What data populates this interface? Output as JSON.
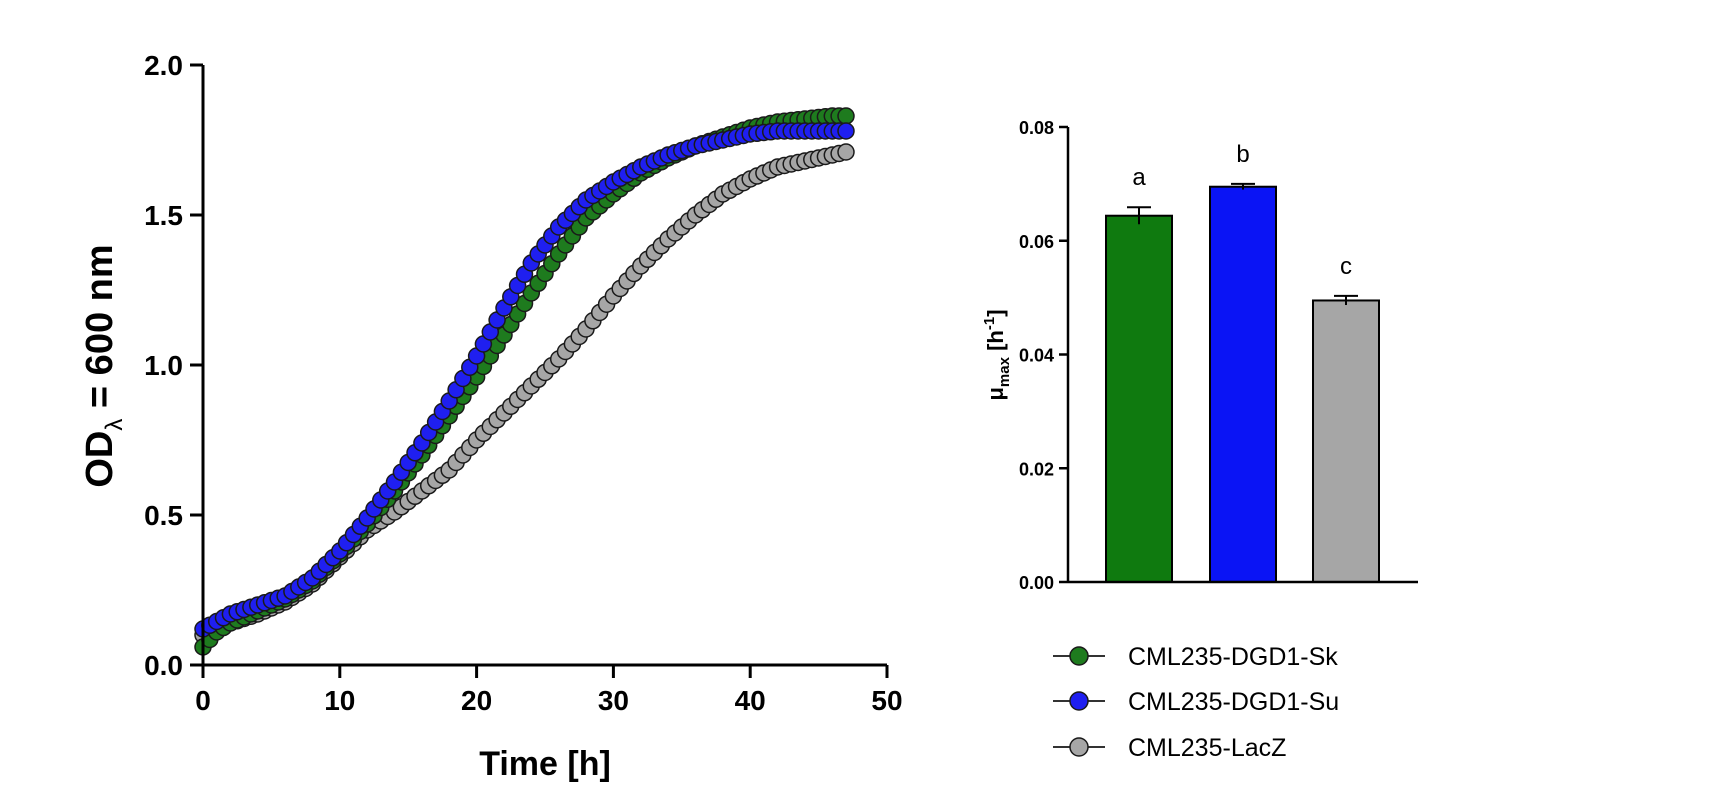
{
  "chart_data": [
    {
      "type": "scatter",
      "title": "",
      "xlabel": "Time [h]",
      "ylabel_main": "OD",
      "ylabel_sub": "λ",
      "ylabel_rest": " = 600 nm",
      "xlim": [
        0,
        50
      ],
      "ylim": [
        0,
        2.0
      ],
      "xticks": [
        0,
        10,
        20,
        30,
        40,
        50
      ],
      "xtick_labels": [
        "0",
        "10",
        "20",
        "30",
        "40",
        "50"
      ],
      "yticks": [
        0.0,
        0.5,
        1.0,
        1.5,
        2.0
      ],
      "ytick_labels": [
        "0.0",
        "0.5",
        "1.0",
        "1.5",
        "2.0"
      ],
      "x_start": 0,
      "x_step": 0.5,
      "x_end": 47,
      "series": [
        {
          "name": "CML235-LacZ",
          "color": "#a6a6a6",
          "keypoints": [
            [
              0,
              0.1
            ],
            [
              2,
              0.14
            ],
            [
              4,
              0.17
            ],
            [
              6,
              0.21
            ],
            [
              8,
              0.27
            ],
            [
              10,
              0.36
            ],
            [
              12,
              0.45
            ],
            [
              14,
              0.51
            ],
            [
              16,
              0.58
            ],
            [
              18,
              0.65
            ],
            [
              20,
              0.75
            ],
            [
              22,
              0.84
            ],
            [
              24,
              0.93
            ],
            [
              26,
              1.02
            ],
            [
              28,
              1.12
            ],
            [
              30,
              1.23
            ],
            [
              32,
              1.33
            ],
            [
              34,
              1.42
            ],
            [
              36,
              1.5
            ],
            [
              38,
              1.57
            ],
            [
              40,
              1.62
            ],
            [
              42,
              1.66
            ],
            [
              44,
              1.68
            ],
            [
              46,
              1.7
            ],
            [
              47,
              1.71
            ]
          ]
        },
        {
          "name": "CML235-DGD1-Sk",
          "color": "#1e7b1e",
          "keypoints": [
            [
              0,
              0.06
            ],
            [
              1,
              0.11
            ],
            [
              2,
              0.14
            ],
            [
              4,
              0.18
            ],
            [
              6,
              0.22
            ],
            [
              8,
              0.28
            ],
            [
              10,
              0.37
            ],
            [
              12,
              0.47
            ],
            [
              14,
              0.58
            ],
            [
              16,
              0.7
            ],
            [
              18,
              0.83
            ],
            [
              20,
              0.96
            ],
            [
              22,
              1.1
            ],
            [
              24,
              1.24
            ],
            [
              26,
              1.37
            ],
            [
              28,
              1.49
            ],
            [
              30,
              1.57
            ],
            [
              32,
              1.64
            ],
            [
              34,
              1.69
            ],
            [
              36,
              1.73
            ],
            [
              38,
              1.76
            ],
            [
              40,
              1.79
            ],
            [
              42,
              1.81
            ],
            [
              44,
              1.82
            ],
            [
              46,
              1.83
            ],
            [
              47,
              1.83
            ]
          ]
        },
        {
          "name": "CML235-DGD1-Su",
          "color": "#1f1ff0",
          "keypoints": [
            [
              0,
              0.12
            ],
            [
              2,
              0.17
            ],
            [
              4,
              0.2
            ],
            [
              6,
              0.23
            ],
            [
              8,
              0.29
            ],
            [
              10,
              0.38
            ],
            [
              12,
              0.49
            ],
            [
              14,
              0.61
            ],
            [
              16,
              0.74
            ],
            [
              18,
              0.88
            ],
            [
              20,
              1.03
            ],
            [
              22,
              1.19
            ],
            [
              24,
              1.34
            ],
            [
              26,
              1.46
            ],
            [
              28,
              1.55
            ],
            [
              30,
              1.61
            ],
            [
              32,
              1.66
            ],
            [
              34,
              1.7
            ],
            [
              36,
              1.73
            ],
            [
              38,
              1.75
            ],
            [
              40,
              1.77
            ],
            [
              42,
              1.78
            ],
            [
              44,
              1.78
            ],
            [
              46,
              1.78
            ],
            [
              47,
              1.78
            ]
          ]
        }
      ]
    },
    {
      "type": "bar",
      "title": "",
      "ylabel_main": "μ",
      "ylabel_sub": "max",
      "ylabel_rest": " [h",
      "ylabel_sup": "-1",
      "ylabel_end": "]",
      "ylim": [
        0,
        0.08
      ],
      "yticks": [
        0.0,
        0.02,
        0.04,
        0.06,
        0.08
      ],
      "ytick_labels": [
        "0.00",
        "0.02",
        "0.04",
        "0.06",
        "0.08"
      ],
      "categories": [
        "CML235-DGD1-Sk",
        "CML235-DGD1-Su",
        "CML235-LacZ"
      ],
      "values": [
        0.0644,
        0.0695,
        0.0495
      ],
      "errors": [
        0.0015,
        0.0005,
        0.0008
      ],
      "colors": [
        "#0f7a0f",
        "#0a14f5",
        "#a6a6a6"
      ],
      "significance_letters": [
        "a",
        "b",
        "c"
      ]
    }
  ],
  "legend": [
    {
      "label": "CML235-DGD1-Sk",
      "color": "#1e7b1e"
    },
    {
      "label": "CML235-DGD1-Su",
      "color": "#1f1ff0"
    },
    {
      "label": "CML235-LacZ",
      "color": "#a6a6a6"
    }
  ]
}
